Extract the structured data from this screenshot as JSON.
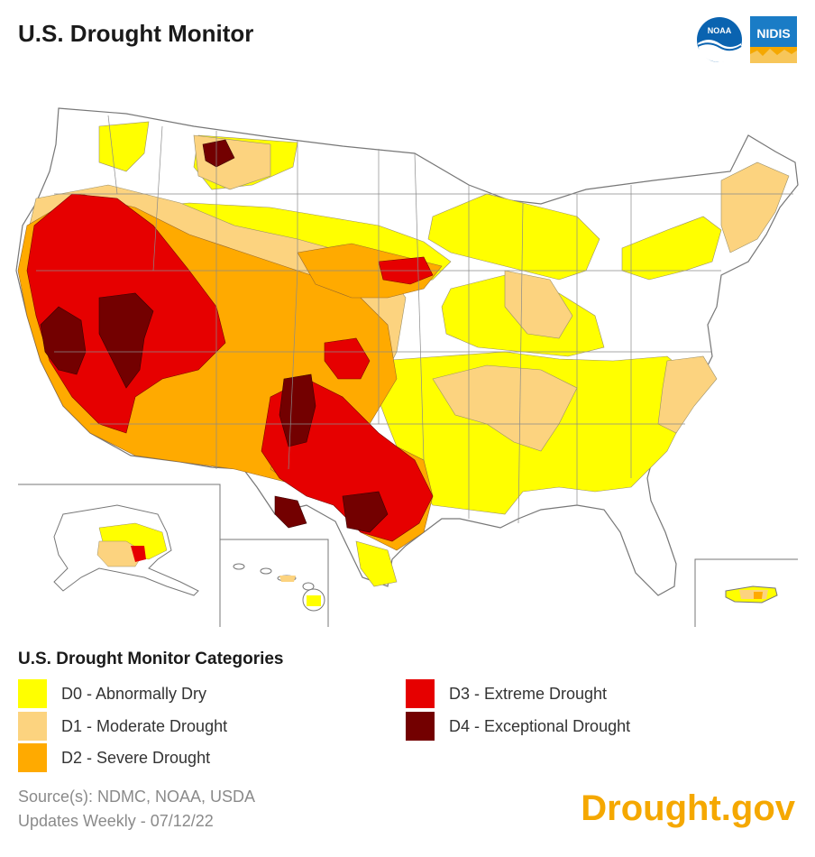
{
  "header": {
    "title": "U.S. Drought Monitor"
  },
  "logos": [
    {
      "name": "noaa",
      "text": "NOAA",
      "icon": "noaa-logo"
    },
    {
      "name": "nidis",
      "text": "NIDIS",
      "icon": "nidis-logo"
    }
  ],
  "legend": {
    "title": "U.S. Drought Monitor Categories",
    "items": [
      {
        "label": "D0 - Abnormally Dry",
        "color": "#ffff00"
      },
      {
        "label": "D1 - Moderate Drought",
        "color": "#fcd37f"
      },
      {
        "label": "D2 - Severe Drought",
        "color": "#ffaa00"
      },
      {
        "label": "D3 - Extreme Drought",
        "color": "#e60000"
      },
      {
        "label": "D4 - Exceptional Drought",
        "color": "#730000"
      }
    ]
  },
  "footer": {
    "source": "Source(s): NDMC, NOAA, USDA",
    "updates": "Updates Weekly - 07/12/22"
  },
  "brand": "Drought.gov"
}
